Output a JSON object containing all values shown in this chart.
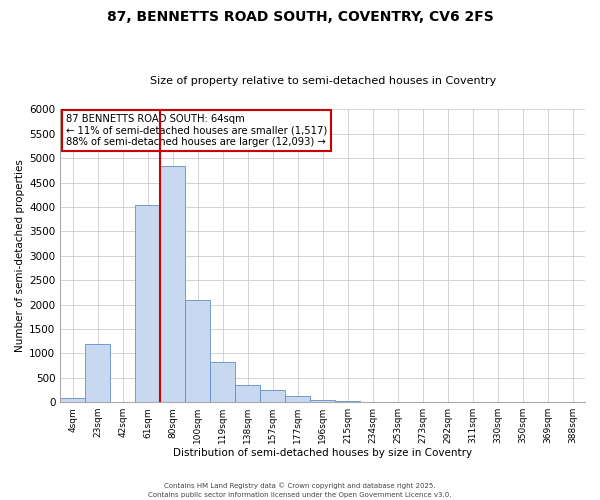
{
  "title": "87, BENNETTS ROAD SOUTH, COVENTRY, CV6 2FS",
  "subtitle": "Size of property relative to semi-detached houses in Coventry",
  "xlabel": "Distribution of semi-detached houses by size in Coventry",
  "ylabel": "Number of semi-detached properties",
  "bar_color": "#c8d8f0",
  "bar_edge_color": "#6090c8",
  "bin_labels": [
    "4sqm",
    "23sqm",
    "42sqm",
    "61sqm",
    "80sqm",
    "100sqm",
    "119sqm",
    "138sqm",
    "157sqm",
    "177sqm",
    "196sqm",
    "215sqm",
    "234sqm",
    "253sqm",
    "273sqm",
    "292sqm",
    "311sqm",
    "330sqm",
    "350sqm",
    "369sqm",
    "388sqm"
  ],
  "bar_heights": [
    75,
    1200,
    0,
    4050,
    4850,
    2100,
    820,
    360,
    240,
    130,
    50,
    20,
    10,
    0,
    0,
    0,
    0,
    0,
    0,
    0,
    0
  ],
  "ylim": [
    0,
    6000
  ],
  "yticks": [
    0,
    500,
    1000,
    1500,
    2000,
    2500,
    3000,
    3500,
    4000,
    4500,
    5000,
    5500,
    6000
  ],
  "vline_x_index": 3,
  "vline_color": "#cc0000",
  "ann_line1": "87 BENNETTS ROAD SOUTH: 64sqm",
  "ann_line2": "← 11% of semi-detached houses are smaller (1,517)",
  "ann_line3": "88% of semi-detached houses are larger (12,093) →",
  "footnote1": "Contains HM Land Registry data © Crown copyright and database right 2025.",
  "footnote2": "Contains public sector information licensed under the Open Government Licence v3.0.",
  "background_color": "#ffffff",
  "grid_color": "#cccccc",
  "title_fontsize": 10,
  "subtitle_fontsize": 8
}
